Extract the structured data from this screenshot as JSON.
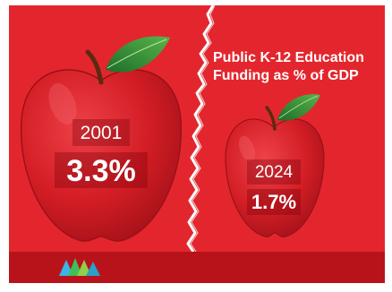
{
  "headline": {
    "line1": "Public K-12 Education",
    "line2_prefix": "Funding as ",
    "line2_emphasis": "% of GDP"
  },
  "apple_2001": {
    "year": "2001",
    "percent": "3.3%"
  },
  "apple_2024": {
    "year": "2024",
    "percent": "1.7%"
  },
  "colors": {
    "background": "#e3262d",
    "apple": "#d81f26",
    "leaf": "#2f8f35",
    "footer": "#b8131b",
    "text": "#ffffff"
  },
  "icons": [
    "apple-icon",
    "leaf-icon",
    "mountain-logo-icon"
  ]
}
